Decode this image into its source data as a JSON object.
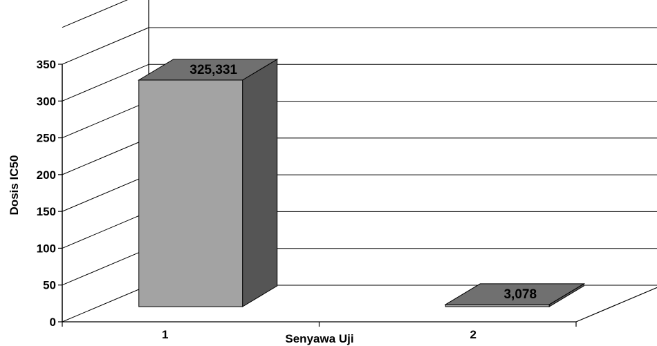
{
  "chart_data": {
    "type": "bar",
    "style": "3d-column",
    "categories": [
      "1",
      "2"
    ],
    "values": [
      325.331,
      3.078
    ],
    "data_labels": [
      "325,331",
      "3,078"
    ],
    "xlabel": "Senyawa Uji",
    "ylabel": "Dosis IC50",
    "ylim": [
      0,
      350
    ],
    "yticks": [
      "0",
      "50",
      "100",
      "150",
      "200",
      "250",
      "300",
      "350"
    ],
    "grid": true,
    "legend": "none",
    "colors": {
      "bar_front": "#a3a3a3",
      "bar_side": "#555555",
      "bar_top": "#707070",
      "gridline": "#000000",
      "axis": "#000000"
    }
  }
}
